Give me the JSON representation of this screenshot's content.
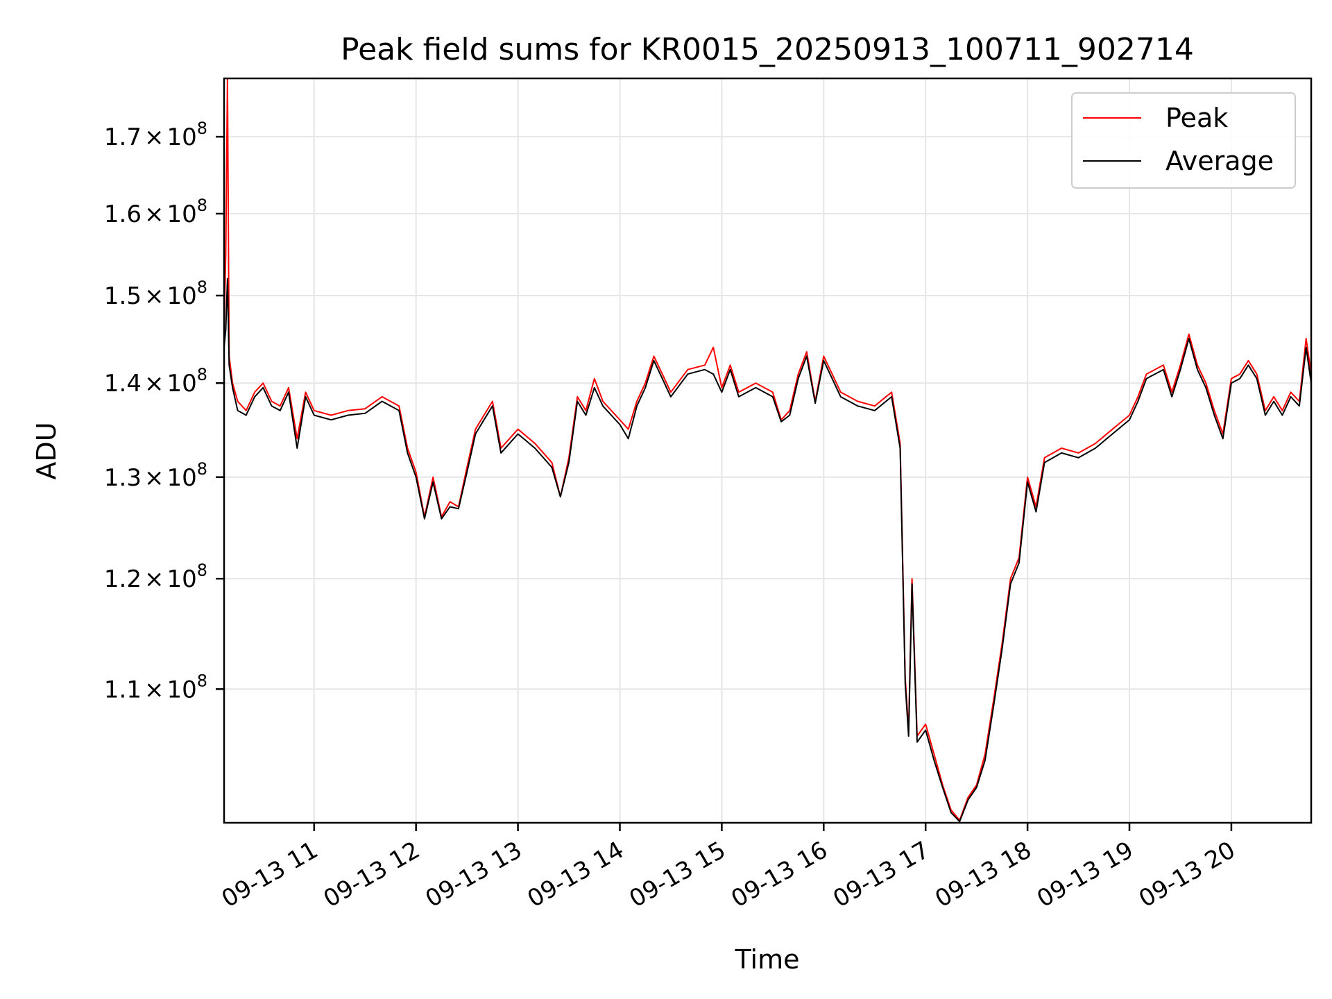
{
  "chart_data": {
    "type": "line",
    "title": "Peak field sums for KR0015_20250913_100711_902714",
    "xlabel": "Time",
    "ylabel": "ADU",
    "y_scale": "log",
    "grid": true,
    "legend_position": "top-right",
    "xlim": [
      "2025-09-13 10:07",
      "2025-09-13 20:47"
    ],
    "ylim": [
      99000000,
      178000000
    ],
    "x_ticks": [
      {
        "value": "2025-09-13 11:00",
        "label": "09-13 11"
      },
      {
        "value": "2025-09-13 12:00",
        "label": "09-13 12"
      },
      {
        "value": "2025-09-13 13:00",
        "label": "09-13 13"
      },
      {
        "value": "2025-09-13 14:00",
        "label": "09-13 14"
      },
      {
        "value": "2025-09-13 15:00",
        "label": "09-13 15"
      },
      {
        "value": "2025-09-13 16:00",
        "label": "09-13 16"
      },
      {
        "value": "2025-09-13 17:00",
        "label": "09-13 17"
      },
      {
        "value": "2025-09-13 18:00",
        "label": "09-13 18"
      },
      {
        "value": "2025-09-13 19:00",
        "label": "09-13 19"
      },
      {
        "value": "2025-09-13 20:00",
        "label": "09-13 20"
      }
    ],
    "y_ticks": [
      {
        "value": 110000000,
        "mantissa": "1.1",
        "exp": "8"
      },
      {
        "value": 120000000,
        "mantissa": "1.2",
        "exp": "8"
      },
      {
        "value": 130000000,
        "mantissa": "1.3",
        "exp": "8"
      },
      {
        "value": 140000000,
        "mantissa": "1.4",
        "exp": "8"
      },
      {
        "value": 150000000,
        "mantissa": "1.5",
        "exp": "8"
      },
      {
        "value": 160000000,
        "mantissa": "1.6",
        "exp": "8"
      },
      {
        "value": 170000000,
        "mantissa": "1.7",
        "exp": "8"
      }
    ],
    "times_symbol": "×",
    "base": "10",
    "series": [
      {
        "name": "Peak",
        "color": "#ff0000",
        "points": [
          [
            "2025-09-13 10:07",
            146000000
          ],
          [
            "2025-09-13 10:08",
            155000000
          ],
          [
            "2025-09-13 10:09",
            178000000
          ],
          [
            "2025-09-13 10:10",
            143000000
          ],
          [
            "2025-09-13 10:12",
            140000000
          ],
          [
            "2025-09-13 10:15",
            138000000
          ],
          [
            "2025-09-13 10:20",
            137000000
          ],
          [
            "2025-09-13 10:25",
            139000000
          ],
          [
            "2025-09-13 10:30",
            140000000
          ],
          [
            "2025-09-13 10:35",
            138000000
          ],
          [
            "2025-09-13 10:40",
            137500000
          ],
          [
            "2025-09-13 10:45",
            139500000
          ],
          [
            "2025-09-13 10:50",
            134000000
          ],
          [
            "2025-09-13 10:55",
            139000000
          ],
          [
            "2025-09-13 11:00",
            137000000
          ],
          [
            "2025-09-13 11:10",
            136500000
          ],
          [
            "2025-09-13 11:20",
            137000000
          ],
          [
            "2025-09-13 11:30",
            137200000
          ],
          [
            "2025-09-13 11:40",
            138500000
          ],
          [
            "2025-09-13 11:50",
            137500000
          ],
          [
            "2025-09-13 11:55",
            133000000
          ],
          [
            "2025-09-13 12:00",
            130500000
          ],
          [
            "2025-09-13 12:05",
            126000000
          ],
          [
            "2025-09-13 12:10",
            130000000
          ],
          [
            "2025-09-13 12:15",
            126000000
          ],
          [
            "2025-09-13 12:20",
            127500000
          ],
          [
            "2025-09-13 12:25",
            127000000
          ],
          [
            "2025-09-13 12:30",
            131000000
          ],
          [
            "2025-09-13 12:35",
            135000000
          ],
          [
            "2025-09-13 12:40",
            136500000
          ],
          [
            "2025-09-13 12:45",
            138000000
          ],
          [
            "2025-09-13 12:50",
            133000000
          ],
          [
            "2025-09-13 13:00",
            135000000
          ],
          [
            "2025-09-13 13:10",
            133500000
          ],
          [
            "2025-09-13 13:20",
            131500000
          ],
          [
            "2025-09-13 13:25",
            128000000
          ],
          [
            "2025-09-13 13:30",
            132000000
          ],
          [
            "2025-09-13 13:35",
            138500000
          ],
          [
            "2025-09-13 13:40",
            137000000
          ],
          [
            "2025-09-13 13:45",
            140500000
          ],
          [
            "2025-09-13 13:50",
            138000000
          ],
          [
            "2025-09-13 14:00",
            136000000
          ],
          [
            "2025-09-13 14:05",
            135000000
          ],
          [
            "2025-09-13 14:10",
            138000000
          ],
          [
            "2025-09-13 14:15",
            140000000
          ],
          [
            "2025-09-13 14:20",
            143000000
          ],
          [
            "2025-09-13 14:25",
            141000000
          ],
          [
            "2025-09-13 14:30",
            139000000
          ],
          [
            "2025-09-13 14:40",
            141500000
          ],
          [
            "2025-09-13 14:50",
            142000000
          ],
          [
            "2025-09-13 14:55",
            144000000
          ],
          [
            "2025-09-13 15:00",
            139500000
          ],
          [
            "2025-09-13 15:05",
            142000000
          ],
          [
            "2025-09-13 15:10",
            139000000
          ],
          [
            "2025-09-13 15:20",
            140000000
          ],
          [
            "2025-09-13 15:30",
            139000000
          ],
          [
            "2025-09-13 15:35",
            136000000
          ],
          [
            "2025-09-13 15:40",
            137000000
          ],
          [
            "2025-09-13 15:45",
            141000000
          ],
          [
            "2025-09-13 15:50",
            143500000
          ],
          [
            "2025-09-13 15:55",
            138000000
          ],
          [
            "2025-09-13 16:00",
            143000000
          ],
          [
            "2025-09-13 16:05",
            141000000
          ],
          [
            "2025-09-13 16:10",
            139000000
          ],
          [
            "2025-09-13 16:20",
            138000000
          ],
          [
            "2025-09-13 16:30",
            137500000
          ],
          [
            "2025-09-13 16:40",
            139000000
          ],
          [
            "2025-09-13 16:45",
            133500000
          ],
          [
            "2025-09-13 16:48",
            111000000
          ],
          [
            "2025-09-13 16:50",
            106500000
          ],
          [
            "2025-09-13 16:52",
            120000000
          ],
          [
            "2025-09-13 16:55",
            106000000
          ],
          [
            "2025-09-13 17:00",
            107000000
          ],
          [
            "2025-09-13 17:05",
            104500000
          ],
          [
            "2025-09-13 17:10",
            102000000
          ],
          [
            "2025-09-13 17:15",
            100000000
          ],
          [
            "2025-09-13 17:20",
            99200000
          ],
          [
            "2025-09-13 17:25",
            101000000
          ],
          [
            "2025-09-13 17:30",
            102000000
          ],
          [
            "2025-09-13 17:35",
            104500000
          ],
          [
            "2025-09-13 17:40",
            109000000
          ],
          [
            "2025-09-13 17:45",
            114000000
          ],
          [
            "2025-09-13 17:50",
            120000000
          ],
          [
            "2025-09-13 17:55",
            122000000
          ],
          [
            "2025-09-13 18:00",
            130000000
          ],
          [
            "2025-09-13 18:05",
            127000000
          ],
          [
            "2025-09-13 18:10",
            132000000
          ],
          [
            "2025-09-13 18:20",
            133000000
          ],
          [
            "2025-09-13 18:30",
            132500000
          ],
          [
            "2025-09-13 18:40",
            133500000
          ],
          [
            "2025-09-13 18:50",
            135000000
          ],
          [
            "2025-09-13 19:00",
            136500000
          ],
          [
            "2025-09-13 19:05",
            138500000
          ],
          [
            "2025-09-13 19:10",
            141000000
          ],
          [
            "2025-09-13 19:20",
            142000000
          ],
          [
            "2025-09-13 19:25",
            139000000
          ],
          [
            "2025-09-13 19:30",
            142000000
          ],
          [
            "2025-09-13 19:35",
            145500000
          ],
          [
            "2025-09-13 19:40",
            142000000
          ],
          [
            "2025-09-13 19:45",
            140000000
          ],
          [
            "2025-09-13 19:50",
            137000000
          ],
          [
            "2025-09-13 19:55",
            134500000
          ],
          [
            "2025-09-13 20:00",
            140500000
          ],
          [
            "2025-09-13 20:05",
            141000000
          ],
          [
            "2025-09-13 20:10",
            142500000
          ],
          [
            "2025-09-13 20:15",
            141000000
          ],
          [
            "2025-09-13 20:20",
            137000000
          ],
          [
            "2025-09-13 20:25",
            138500000
          ],
          [
            "2025-09-13 20:30",
            137000000
          ],
          [
            "2025-09-13 20:35",
            139000000
          ],
          [
            "2025-09-13 20:40",
            138000000
          ],
          [
            "2025-09-13 20:44",
            145000000
          ],
          [
            "2025-09-13 20:47",
            141000000
          ]
        ]
      },
      {
        "name": "Average",
        "color": "#000000",
        "points": [
          [
            "2025-09-13 10:07",
            144000000
          ],
          [
            "2025-09-13 10:08",
            146000000
          ],
          [
            "2025-09-13 10:09",
            152000000
          ],
          [
            "2025-09-13 10:10",
            142000000
          ],
          [
            "2025-09-13 10:12",
            139500000
          ],
          [
            "2025-09-13 10:15",
            137000000
          ],
          [
            "2025-09-13 10:20",
            136500000
          ],
          [
            "2025-09-13 10:25",
            138500000
          ],
          [
            "2025-09-13 10:30",
            139500000
          ],
          [
            "2025-09-13 10:35",
            137500000
          ],
          [
            "2025-09-13 10:40",
            137000000
          ],
          [
            "2025-09-13 10:45",
            139000000
          ],
          [
            "2025-09-13 10:50",
            133000000
          ],
          [
            "2025-09-13 10:55",
            138500000
          ],
          [
            "2025-09-13 11:00",
            136500000
          ],
          [
            "2025-09-13 11:10",
            136000000
          ],
          [
            "2025-09-13 11:20",
            136500000
          ],
          [
            "2025-09-13 11:30",
            136700000
          ],
          [
            "2025-09-13 11:40",
            138000000
          ],
          [
            "2025-09-13 11:50",
            137000000
          ],
          [
            "2025-09-13 11:55",
            132500000
          ],
          [
            "2025-09-13 12:00",
            130000000
          ],
          [
            "2025-09-13 12:05",
            125800000
          ],
          [
            "2025-09-13 12:10",
            129500000
          ],
          [
            "2025-09-13 12:15",
            125800000
          ],
          [
            "2025-09-13 12:20",
            127000000
          ],
          [
            "2025-09-13 12:25",
            126800000
          ],
          [
            "2025-09-13 12:30",
            130500000
          ],
          [
            "2025-09-13 12:35",
            134500000
          ],
          [
            "2025-09-13 12:40",
            136000000
          ],
          [
            "2025-09-13 12:45",
            137500000
          ],
          [
            "2025-09-13 12:50",
            132500000
          ],
          [
            "2025-09-13 13:00",
            134500000
          ],
          [
            "2025-09-13 13:10",
            133000000
          ],
          [
            "2025-09-13 13:20",
            131000000
          ],
          [
            "2025-09-13 13:25",
            128000000
          ],
          [
            "2025-09-13 13:30",
            131500000
          ],
          [
            "2025-09-13 13:35",
            138000000
          ],
          [
            "2025-09-13 13:40",
            136500000
          ],
          [
            "2025-09-13 13:45",
            139500000
          ],
          [
            "2025-09-13 13:50",
            137500000
          ],
          [
            "2025-09-13 14:00",
            135500000
          ],
          [
            "2025-09-13 14:05",
            134000000
          ],
          [
            "2025-09-13 14:10",
            137500000
          ],
          [
            "2025-09-13 14:15",
            139500000
          ],
          [
            "2025-09-13 14:20",
            142500000
          ],
          [
            "2025-09-13 14:25",
            140500000
          ],
          [
            "2025-09-13 14:30",
            138500000
          ],
          [
            "2025-09-13 14:40",
            141000000
          ],
          [
            "2025-09-13 14:50",
            141500000
          ],
          [
            "2025-09-13 14:55",
            141000000
          ],
          [
            "2025-09-13 15:00",
            139000000
          ],
          [
            "2025-09-13 15:05",
            141500000
          ],
          [
            "2025-09-13 15:10",
            138500000
          ],
          [
            "2025-09-13 15:20",
            139500000
          ],
          [
            "2025-09-13 15:30",
            138500000
          ],
          [
            "2025-09-13 15:35",
            135800000
          ],
          [
            "2025-09-13 15:40",
            136500000
          ],
          [
            "2025-09-13 15:45",
            140500000
          ],
          [
            "2025-09-13 15:50",
            143000000
          ],
          [
            "2025-09-13 15:55",
            137800000
          ],
          [
            "2025-09-13 16:00",
            142500000
          ],
          [
            "2025-09-13 16:05",
            140500000
          ],
          [
            "2025-09-13 16:10",
            138500000
          ],
          [
            "2025-09-13 16:20",
            137500000
          ],
          [
            "2025-09-13 16:30",
            137000000
          ],
          [
            "2025-09-13 16:40",
            138500000
          ],
          [
            "2025-09-13 16:45",
            133000000
          ],
          [
            "2025-09-13 16:48",
            110500000
          ],
          [
            "2025-09-13 16:50",
            106000000
          ],
          [
            "2025-09-13 16:52",
            119500000
          ],
          [
            "2025-09-13 16:55",
            105500000
          ],
          [
            "2025-09-13 17:00",
            106500000
          ],
          [
            "2025-09-13 17:05",
            104000000
          ],
          [
            "2025-09-13 17:10",
            101800000
          ],
          [
            "2025-09-13 17:15",
            99800000
          ],
          [
            "2025-09-13 17:20",
            99100000
          ],
          [
            "2025-09-13 17:25",
            100800000
          ],
          [
            "2025-09-13 17:30",
            101800000
          ],
          [
            "2025-09-13 17:35",
            104000000
          ],
          [
            "2025-09-13 17:40",
            108500000
          ],
          [
            "2025-09-13 17:45",
            113500000
          ],
          [
            "2025-09-13 17:50",
            119500000
          ],
          [
            "2025-09-13 17:55",
            121500000
          ],
          [
            "2025-09-13 18:00",
            129500000
          ],
          [
            "2025-09-13 18:05",
            126500000
          ],
          [
            "2025-09-13 18:10",
            131500000
          ],
          [
            "2025-09-13 18:20",
            132500000
          ],
          [
            "2025-09-13 18:30",
            132000000
          ],
          [
            "2025-09-13 18:40",
            133000000
          ],
          [
            "2025-09-13 18:50",
            134500000
          ],
          [
            "2025-09-13 19:00",
            136000000
          ],
          [
            "2025-09-13 19:05",
            138000000
          ],
          [
            "2025-09-13 19:10",
            140500000
          ],
          [
            "2025-09-13 19:20",
            141500000
          ],
          [
            "2025-09-13 19:25",
            138500000
          ],
          [
            "2025-09-13 19:30",
            141500000
          ],
          [
            "2025-09-13 19:35",
            145000000
          ],
          [
            "2025-09-13 19:40",
            141500000
          ],
          [
            "2025-09-13 19:45",
            139500000
          ],
          [
            "2025-09-13 19:50",
            136500000
          ],
          [
            "2025-09-13 19:55",
            134000000
          ],
          [
            "2025-09-13 20:00",
            140000000
          ],
          [
            "2025-09-13 20:05",
            140500000
          ],
          [
            "2025-09-13 20:10",
            142000000
          ],
          [
            "2025-09-13 20:15",
            140500000
          ],
          [
            "2025-09-13 20:20",
            136500000
          ],
          [
            "2025-09-13 20:25",
            138000000
          ],
          [
            "2025-09-13 20:30",
            136500000
          ],
          [
            "2025-09-13 20:35",
            138500000
          ],
          [
            "2025-09-13 20:40",
            137500000
          ],
          [
            "2025-09-13 20:44",
            144000000
          ],
          [
            "2025-09-13 20:47",
            140000000
          ]
        ]
      }
    ]
  }
}
